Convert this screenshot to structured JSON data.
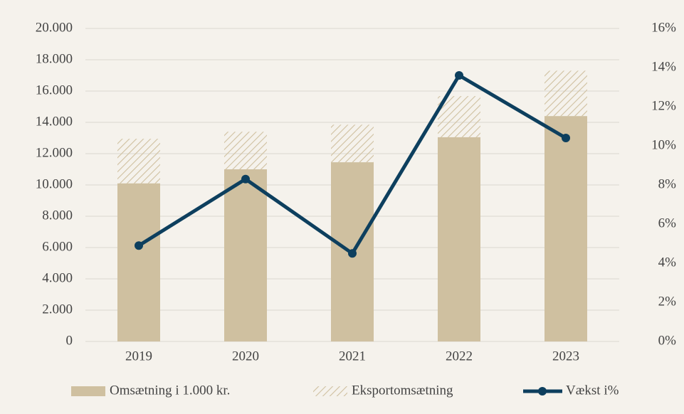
{
  "chart_data": {
    "type": "bar",
    "categories": [
      "2019",
      "2020",
      "2021",
      "2022",
      "2023"
    ],
    "series": [
      {
        "name": "Omsætning i 1.000 kr.",
        "type": "bar",
        "color": "#cfc0a0",
        "values": [
          10100,
          11000,
          11450,
          13050,
          14400
        ]
      },
      {
        "name": "Eksportomsætning",
        "type": "bar",
        "color": "#cfc0a0",
        "pattern": "hatch",
        "values": [
          2850,
          2400,
          2400,
          2630,
          2900
        ]
      },
      {
        "name": "Vækst i%",
        "type": "line",
        "axis": "y2",
        "color": "#0d3f5e",
        "values": [
          4.9,
          8.3,
          4.5,
          13.6,
          10.4
        ]
      }
    ],
    "stacked": true,
    "ylim": [
      0,
      20000
    ],
    "yticks": [
      0,
      {
        "value": 2000,
        "label": "2.000"
      },
      {
        "value": 4000,
        "label": "4.000"
      },
      {
        "value": 6000,
        "label": "6.000"
      },
      {
        "value": 8000,
        "label": "8.000"
      },
      {
        "value": 10000,
        "label": "10.000"
      },
      {
        "value": 12000,
        "label": "12.000"
      },
      {
        "value": 14000,
        "label": "14.000"
      },
      {
        "value": 16000,
        "label": "16.000"
      },
      {
        "value": 18000,
        "label": "18.000"
      },
      {
        "value": 20000,
        "label": "20.000"
      }
    ],
    "y2lim": [
      0,
      16
    ],
    "y2ticks": [
      {
        "value": 0,
        "label": "0%"
      },
      {
        "value": 2,
        "label": "2%"
      },
      {
        "value": 4,
        "label": "4%"
      },
      {
        "value": 6,
        "label": "6%"
      },
      {
        "value": 8,
        "label": "8%"
      },
      {
        "value": 10,
        "label": "10%"
      },
      {
        "value": 12,
        "label": "12%"
      },
      {
        "value": 14,
        "label": "14%"
      },
      {
        "value": 16,
        "label": "16%"
      }
    ],
    "grid": true,
    "legend": "bottom"
  }
}
